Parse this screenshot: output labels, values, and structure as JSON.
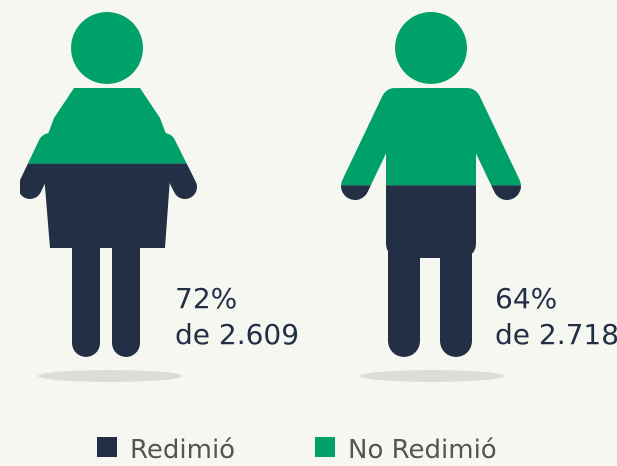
{
  "chart_data": {
    "type": "pictogram",
    "series": [
      {
        "name": "Redimió",
        "color": "#232f45",
        "values": [
          72,
          64
        ],
        "value_labels": [
          "72%",
          "64%"
        ]
      },
      {
        "name": "No Redimió",
        "color": "#00a06b",
        "values": [
          28,
          36
        ]
      }
    ],
    "annotations": [
      "de 2.609",
      "de 2.718"
    ]
  }
}
